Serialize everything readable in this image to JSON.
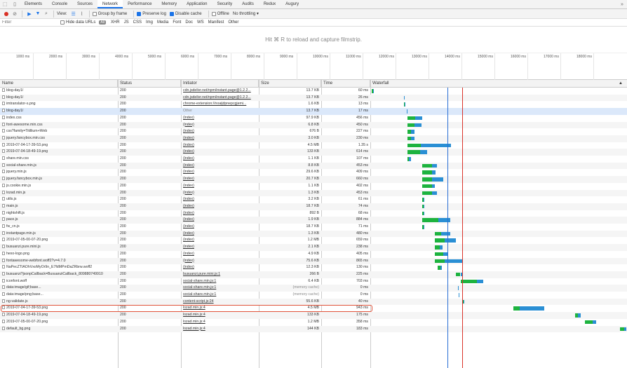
{
  "tabs": {
    "items": [
      "Elements",
      "Console",
      "Sources",
      "Network",
      "Performance",
      "Memory",
      "Application",
      "Security",
      "Audits",
      "Redux",
      "Augury"
    ],
    "active_index": 3
  },
  "toolbar": {
    "view_label": "View:",
    "group_by_frame": "Group by frame",
    "preserve_log": "Preserve log",
    "disable_cache": "Disable cache",
    "offline": "Offline",
    "throttle": "No throttling"
  },
  "filterbar": {
    "placeholder": "Filter",
    "hide_data_urls": "Hide data URLs",
    "all_badge": "All",
    "types": [
      "XHR",
      "JS",
      "CSS",
      "Img",
      "Media",
      "Font",
      "Doc",
      "WS",
      "Manifest",
      "Other"
    ]
  },
  "filmstrip": {
    "message": "Hit ⌘ R to reload and capture filmstrip."
  },
  "overview": {
    "ticks": [
      "1000 ms",
      "2000 ms",
      "3000 ms",
      "4000 ms",
      "5000 ms",
      "6000 ms",
      "7000 ms",
      "8000 ms",
      "9000 ms",
      "10000 ms",
      "11000 ms",
      "12000 ms",
      "13000 ms",
      "14000 ms",
      "15000 ms",
      "16000 ms",
      "17000 ms",
      "18000 ms"
    ]
  },
  "columns": {
    "name": "Name",
    "status": "Status",
    "initiator": "Initiator",
    "size": "Size",
    "time": "Time",
    "waterfall": "Waterfall"
  },
  "colors": {
    "waiting": "#1db33f",
    "download": "#2a8fd4",
    "domcontentloaded": "#2a6fd4",
    "load": "#d9332a",
    "highlight": "#e0533a"
  },
  "rows": [
    {
      "name": "blog-day1/",
      "status": "200",
      "initiator": "cdn.jsdelivr.net/npm/instant.page@1.2.2...",
      "link": true,
      "size": "13.7 KB",
      "time": "60 ms"
    },
    {
      "name": "blog-day1/",
      "status": "200",
      "initiator": "cdn.jsdelivr.net/npm/instant.page@1.2.2...",
      "link": true,
      "size": "13.7 KB",
      "time": "26 ms"
    },
    {
      "name": "imtranslator-s.png",
      "status": "200",
      "initiator": "chrome-extension://noaijdpnepcgjemi...",
      "link": true,
      "size": "1.6 KB",
      "time": "13 ms"
    },
    {
      "name": "blog-day1/",
      "status": "200",
      "initiator": "Other",
      "link": false,
      "size": "13.7 KB",
      "time": "17 ms"
    },
    {
      "name": "index.css",
      "status": "200",
      "initiator": "(index)",
      "link": true,
      "size": "97.9 KB",
      "time": "456 ms"
    },
    {
      "name": "font-awesome.min.css",
      "status": "200",
      "initiator": "(index)",
      "link": true,
      "size": "6.8 KB",
      "time": "450 ms"
    },
    {
      "name": "css?family=Titillium+Web",
      "status": "200",
      "initiator": "(index)",
      "link": true,
      "size": "676 B",
      "time": "227 ms"
    },
    {
      "name": "jquery.fancybox.min.css",
      "status": "200",
      "initiator": "(index)",
      "link": true,
      "size": "3.0 KB",
      "time": "230 ms"
    },
    {
      "name": "2019-07-04-17-39-53.png",
      "status": "200",
      "initiator": "(index)",
      "link": true,
      "size": "4.5 MB",
      "time": "1.35 s"
    },
    {
      "name": "2019-07-04-18-49-19.png",
      "status": "200",
      "initiator": "(index)",
      "link": true,
      "size": "133 KB",
      "time": "614 ms"
    },
    {
      "name": "share.min.css",
      "status": "200",
      "initiator": "(index)",
      "link": true,
      "size": "1.1 KB",
      "time": "107 ms"
    },
    {
      "name": "social-share.min.js",
      "status": "200",
      "initiator": "(index)",
      "link": true,
      "size": "8.8 KB",
      "time": "453 ms"
    },
    {
      "name": "jquery.min.js",
      "status": "200",
      "initiator": "(index)",
      "link": true,
      "size": "29.6 KB",
      "time": "409 ms"
    },
    {
      "name": "jquery.fancybox.min.js",
      "status": "200",
      "initiator": "(index)",
      "link": true,
      "size": "20.7 KB",
      "time": "660 ms"
    },
    {
      "name": "js.cookie.min.js",
      "status": "200",
      "initiator": "(index)",
      "link": true,
      "size": "1.1 KB",
      "time": "402 ms"
    },
    {
      "name": "lozad.min.js",
      "status": "200",
      "initiator": "(index)",
      "link": true,
      "size": "1.3 KB",
      "time": "453 ms"
    },
    {
      "name": "utils.js",
      "status": "200",
      "initiator": "(index)",
      "link": true,
      "size": "3.2 KB",
      "time": "61 ms"
    },
    {
      "name": "main.js",
      "status": "200",
      "initiator": "(index)",
      "link": true,
      "size": "18.7 KB",
      "time": "74 ms"
    },
    {
      "name": "nightshift.js",
      "status": "200",
      "initiator": "(index)",
      "link": true,
      "size": "892 B",
      "time": "68 ms"
    },
    {
      "name": "pace.js",
      "status": "200",
      "initiator": "(index)",
      "link": true,
      "size": "1.9 KB",
      "time": "884 ms"
    },
    {
      "name": "fw_cn.js",
      "status": "200",
      "initiator": "(index)",
      "link": true,
      "size": "18.7 KB",
      "time": "71 ms"
    },
    {
      "name": "instantpage.min.js",
      "status": "200",
      "initiator": "(index)",
      "link": true,
      "size": "1.3 KB",
      "time": "480 ms"
    },
    {
      "name": "2019-07-05-00-07-20.png",
      "status": "200",
      "initiator": "(index)",
      "link": true,
      "size": "1.2 MB",
      "time": "659 ms"
    },
    {
      "name": "busuanzi.pure.mini.js",
      "status": "200",
      "initiator": "(index)",
      "link": true,
      "size": "2.1 KB",
      "time": "238 ms"
    },
    {
      "name": "hexo-logo.png",
      "status": "200",
      "initiator": "(index)",
      "link": true,
      "size": "4.9 KB",
      "time": "405 ms"
    },
    {
      "name": "fontawesome-webfont.woff2?v=4.7.0",
      "status": "200",
      "initiator": "(index)",
      "link": true,
      "size": "75.6 KB",
      "time": "865 ms"
    },
    {
      "name": "NaPecZTIAOhVxoMyOr9n_E7fdMPmDaZRbrw.woff2",
      "status": "200",
      "initiator": "(index)",
      "link": true,
      "size": "12.3 KB",
      "time": "130 ms"
    },
    {
      "name": "busuanzi?jsonpCallback=BusuanziCallback_809880749910",
      "status": "200",
      "initiator": "busuanzi.pure.mini.js:1",
      "link": true,
      "size": "266 B",
      "time": "225 ms"
    },
    {
      "name": "iconfont.woff",
      "status": "200",
      "initiator": "social-share.min.js:1",
      "link": true,
      "size": "6.4 KB",
      "time": "703 ms"
    },
    {
      "name": "data:image/gif;base...",
      "status": "200",
      "initiator": "social-share.min.js:1",
      "link": true,
      "size": "(memory cache)",
      "time": "0 ms"
    },
    {
      "name": "data:image/png;base...",
      "status": "200",
      "initiator": "social-share.min.js:1",
      "link": true,
      "size": "(memory cache)",
      "time": "0 ms"
    },
    {
      "name": "ng-validate.js",
      "status": "200",
      "initiator": "content-script.js:24",
      "link": true,
      "size": "55.6 KB",
      "time": "40 ms"
    },
    {
      "name": "2019-07-04-17-39-53.png",
      "status": "200",
      "initiator": "lozad.min.js:4",
      "link": true,
      "size": "4.5 MB",
      "time": "943 ms"
    },
    {
      "name": "2019-07-04-18-49-19.png",
      "status": "200",
      "initiator": "lozad.min.js:4",
      "link": true,
      "size": "133 KB",
      "time": "175 ms"
    },
    {
      "name": "2019-07-05-00-07-20.png",
      "status": "200",
      "initiator": "lozad.min.js:4",
      "link": true,
      "size": "1.2 MB",
      "time": "358 ms"
    },
    {
      "name": "default_bg.png",
      "status": "200",
      "initiator": "lozad.min.js:4",
      "link": true,
      "size": "144 KB",
      "time": "183 ms"
    }
  ],
  "waterfall": {
    "unit": "ms",
    "domcontentloaded_ms": 2350,
    "load_ms": 2800,
    "bars": [
      {
        "start_ms": 5,
        "wait_ms": 40,
        "dl_ms": 20
      },
      {
        "start_ms": 990,
        "wait_ms": 20,
        "dl_ms": 6
      },
      {
        "start_ms": 1010,
        "wait_ms": 8,
        "dl_ms": 5
      },
      {
        "start_ms": 1080,
        "wait_ms": 12,
        "dl_ms": 5
      },
      {
        "start_ms": 1100,
        "wait_ms": 240,
        "dl_ms": 216
      },
      {
        "start_ms": 1100,
        "wait_ms": 230,
        "dl_ms": 220
      },
      {
        "start_ms": 1100,
        "wait_ms": 120,
        "dl_ms": 107
      },
      {
        "start_ms": 1100,
        "wait_ms": 120,
        "dl_ms": 110
      },
      {
        "start_ms": 1100,
        "wait_ms": 420,
        "dl_ms": 930
      },
      {
        "start_ms": 1100,
        "wait_ms": 400,
        "dl_ms": 214
      },
      {
        "start_ms": 1100,
        "wait_ms": 60,
        "dl_ms": 47
      },
      {
        "start_ms": 1560,
        "wait_ms": 300,
        "dl_ms": 153
      },
      {
        "start_ms": 1560,
        "wait_ms": 300,
        "dl_ms": 109
      },
      {
        "start_ms": 1560,
        "wait_ms": 300,
        "dl_ms": 360
      },
      {
        "start_ms": 1560,
        "wait_ms": 300,
        "dl_ms": 102
      },
      {
        "start_ms": 1560,
        "wait_ms": 300,
        "dl_ms": 153
      },
      {
        "start_ms": 1560,
        "wait_ms": 40,
        "dl_ms": 21
      },
      {
        "start_ms": 1560,
        "wait_ms": 50,
        "dl_ms": 24
      },
      {
        "start_ms": 1560,
        "wait_ms": 40,
        "dl_ms": 28
      },
      {
        "start_ms": 1560,
        "wait_ms": 500,
        "dl_ms": 384
      },
      {
        "start_ms": 1560,
        "wait_ms": 40,
        "dl_ms": 31
      },
      {
        "start_ms": 1960,
        "wait_ms": 200,
        "dl_ms": 280
      },
      {
        "start_ms": 1960,
        "wait_ms": 300,
        "dl_ms": 359
      },
      {
        "start_ms": 1960,
        "wait_ms": 150,
        "dl_ms": 88
      },
      {
        "start_ms": 1960,
        "wait_ms": 250,
        "dl_ms": 155
      },
      {
        "start_ms": 1960,
        "wait_ms": 300,
        "dl_ms": 565
      },
      {
        "start_ms": 2040,
        "wait_ms": 100,
        "dl_ms": 30
      },
      {
        "start_ms": 2600,
        "wait_ms": 150,
        "dl_ms": 75
      },
      {
        "start_ms": 2750,
        "wait_ms": 500,
        "dl_ms": 203
      },
      {
        "start_ms": 2680,
        "wait_ms": 0,
        "dl_ms": 10
      },
      {
        "start_ms": 2690,
        "wait_ms": 0,
        "dl_ms": 10
      },
      {
        "start_ms": 2820,
        "wait_ms": 25,
        "dl_ms": 15
      },
      {
        "start_ms": 4400,
        "wait_ms": 180,
        "dl_ms": 763
      },
      {
        "start_ms": 6300,
        "wait_ms": 100,
        "dl_ms": 75
      },
      {
        "start_ms": 6600,
        "wait_ms": 250,
        "dl_ms": 108
      },
      {
        "start_ms": 7700,
        "wait_ms": 120,
        "dl_ms": 63
      }
    ]
  },
  "selected_row": 3,
  "highlighted_row": 32
}
